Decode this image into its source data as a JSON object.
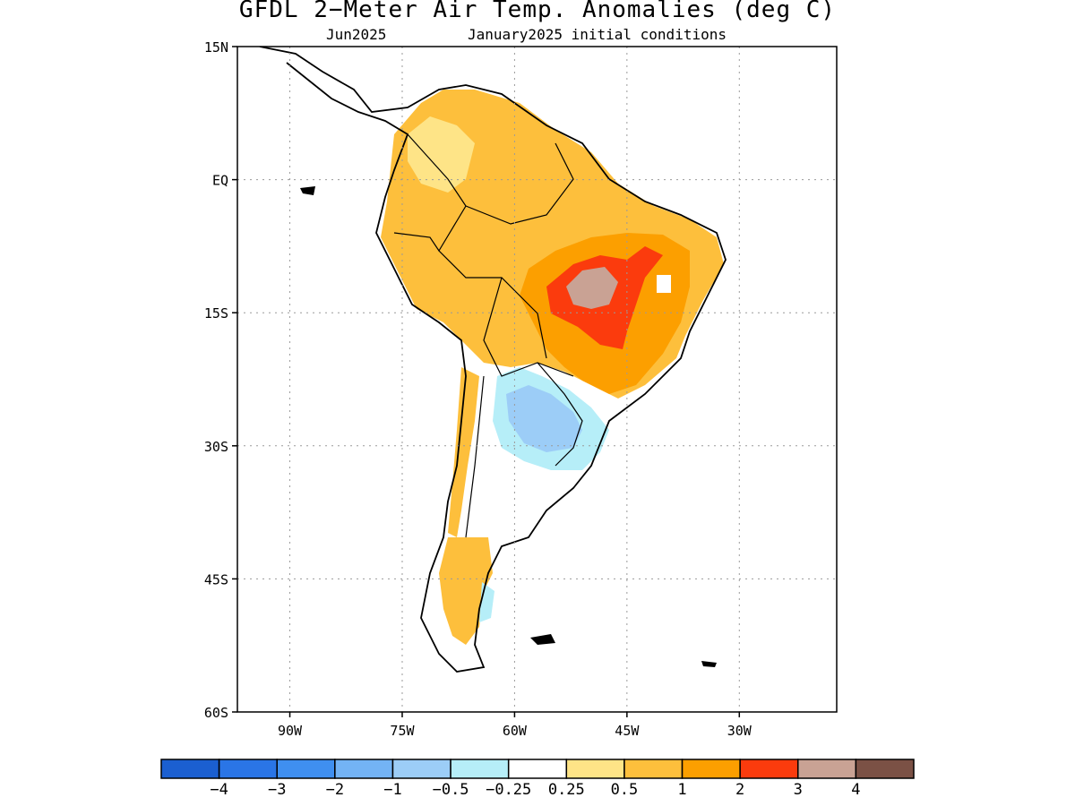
{
  "title": "GFDL 2−Meter Air Temp. Anomalies (deg C)",
  "subtitle_left": "Jun2025",
  "subtitle_right": "January2025 initial conditions",
  "map": {
    "lon_range": [
      -97,
      -17
    ],
    "lat_range": [
      -60,
      15
    ],
    "lat_ticks": [
      {
        "lat": 15,
        "label": "15N"
      },
      {
        "lat": 0,
        "label": "EQ"
      },
      {
        "lat": -15,
        "label": "15S"
      },
      {
        "lat": -30,
        "label": "30S"
      },
      {
        "lat": -45,
        "label": "45S"
      },
      {
        "lat": -60,
        "label": "60S"
      }
    ],
    "lon_ticks": [
      {
        "lon": -90,
        "label": "90W"
      },
      {
        "lon": -75,
        "label": "75W"
      },
      {
        "lon": -60,
        "label": "60W"
      },
      {
        "lon": -45,
        "label": "45W"
      },
      {
        "lon": -30,
        "label": "30W"
      }
    ],
    "grid": "dotted"
  },
  "colorbar": {
    "colors": [
      "#1b5fd0",
      "#2a75e6",
      "#3f8ff0",
      "#73b3f5",
      "#9ccdf7",
      "#b6eef8",
      "#ffffff",
      "#fee487",
      "#fdbf3c",
      "#fc9f00",
      "#fb3b0d",
      "#c9a294",
      "#7b5145"
    ],
    "labels": [
      "−4",
      "−3",
      "−2",
      "−1",
      "−0.5",
      "−0.25",
      "0.25",
      "0.5",
      "1",
      "2",
      "3",
      "4"
    ]
  }
}
